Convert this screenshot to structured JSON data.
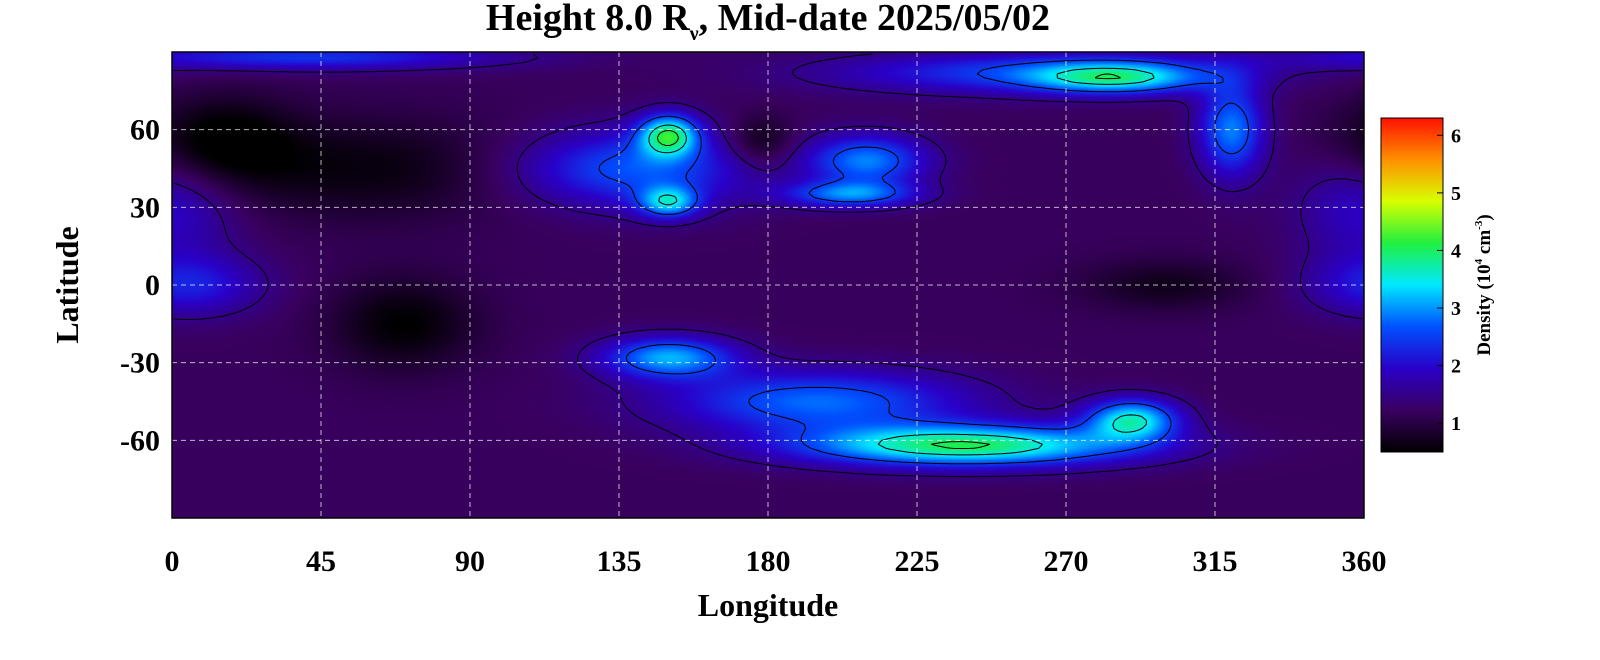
{
  "title": {
    "prefix": "Height 8.0 R",
    "subscript": "ν",
    "suffix": ", Mid-date 2025/05/02"
  },
  "colorbar": {
    "label_prefix": "Density (10",
    "label_exp1": "4",
    "label_mid": " cm",
    "label_exp2": "-3",
    "label_suffix": ")",
    "ticks": [
      "1",
      "2",
      "3",
      "4",
      "5",
      "6"
    ],
    "tick_values": [
      1,
      2,
      3,
      4,
      5,
      6
    ],
    "range": [
      0.5,
      6.3
    ],
    "colors": [
      "#000000",
      "#3a0060",
      "#2a00c8",
      "#0050ff",
      "#00e8ff",
      "#20f040",
      "#d8ff00",
      "#ff9000",
      "#ff1000"
    ]
  },
  "chart_data": {
    "type": "heatmap",
    "xlabel": "Longitude",
    "ylabel": "Latitude",
    "xlim": [
      0,
      360
    ],
    "ylim": [
      -90,
      90
    ],
    "xticks": [
      0,
      45,
      90,
      135,
      180,
      225,
      270,
      315,
      360
    ],
    "yticks": [
      -60,
      -30,
      0,
      30,
      60
    ],
    "grid": true,
    "grid_x": [
      45,
      90,
      135,
      180,
      225,
      270,
      315
    ],
    "grid_y": [
      -60,
      -30,
      0,
      30,
      60
    ],
    "background_density": 1.2,
    "features": [
      {
        "lon": 15,
        "lat": 55,
        "slon": 22,
        "slat": 18,
        "density": -0.8
      },
      {
        "lon": 60,
        "lat": 45,
        "slon": 45,
        "slat": 20,
        "density": -0.6
      },
      {
        "lon": 70,
        "lat": -15,
        "slon": 22,
        "slat": 18,
        "density": -0.7
      },
      {
        "lon": 300,
        "lat": 0,
        "slon": 25,
        "slat": 10,
        "density": -0.5
      },
      {
        "lon": 178,
        "lat": 55,
        "slon": 10,
        "slat": 10,
        "density": -0.7
      },
      {
        "lon": 5,
        "lat": 0,
        "slon": 22,
        "slat": 12,
        "density": 1.0
      },
      {
        "lon": 140,
        "lat": 45,
        "slon": 35,
        "slat": 15,
        "density": 1.5
      },
      {
        "lon": 210,
        "lat": 48,
        "slon": 18,
        "slat": 10,
        "density": 1.7
      },
      {
        "lon": 150,
        "lat": 58,
        "slon": 9,
        "slat": 8,
        "density": 2.4
      },
      {
        "lon": 150,
        "lat": 32,
        "slon": 9,
        "slat": 6,
        "density": 1.8
      },
      {
        "lon": 205,
        "lat": 35,
        "slon": 20,
        "slat": 5,
        "density": 1.6
      },
      {
        "lon": 260,
        "lat": 82,
        "slon": 60,
        "slat": 8,
        "density": 1.3
      },
      {
        "lon": 285,
        "lat": 80,
        "slon": 25,
        "slat": 6,
        "density": 1.8
      },
      {
        "lon": 320,
        "lat": 60,
        "slon": 10,
        "slat": 18,
        "density": 1.7
      },
      {
        "lon": 40,
        "lat": 88,
        "slon": 60,
        "slat": 5,
        "density": 1.2
      },
      {
        "lon": 150,
        "lat": -28,
        "slon": 20,
        "slat": 8,
        "density": 1.9
      },
      {
        "lon": 195,
        "lat": -45,
        "slon": 45,
        "slat": 12,
        "density": 1.6
      },
      {
        "lon": 240,
        "lat": -62,
        "slon": 50,
        "slat": 8,
        "density": 2.8
      },
      {
        "lon": 290,
        "lat": -52,
        "slon": 14,
        "slat": 8,
        "density": 2.3
      },
      {
        "lon": 360,
        "lat": 30,
        "slon": 20,
        "slat": 20,
        "density": 0.8
      }
    ]
  }
}
